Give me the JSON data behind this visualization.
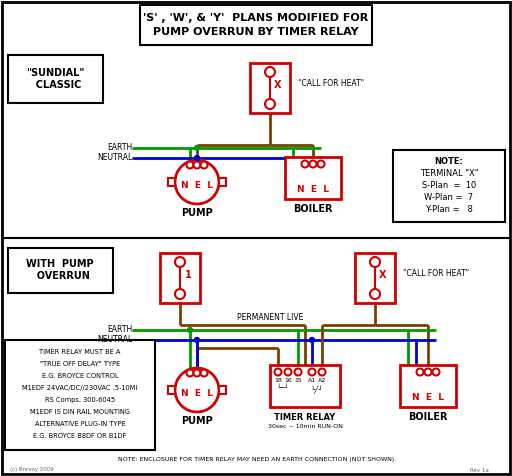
{
  "title_text": "'S' , 'W', & 'Y'  PLANS MODIFIED FOR\nPUMP OVERRUN BY TIMER RELAY",
  "bg_color": "#ffffff",
  "red": "#cc0000",
  "green": "#009900",
  "blue": "#0000cc",
  "brown": "#7B3F00",
  "black": "#000000",
  "gray": "#666666",
  "note_top": [
    "NOTE:",
    "TERMINAL \"X\"",
    "S-Plan  =  10",
    "W-Plan =  7",
    "Y-Plan =   8"
  ],
  "note_bottom": [
    "TIMER RELAY MUST BE A",
    "\"TRUE OFF DELAY\" TYPE",
    "E.G. BROYCE CONTROL",
    "M1EDF 24VAC/DC//230VAC .5-10MI",
    "RS Comps. 300-6045",
    "M1EDF IS DIN RAIL MOUNTING",
    "ALTERNATIVE PLUG-IN TYPE",
    "E.G. BROYCE B8DF OR B1DF"
  ],
  "bottom_note": "NOTE: ENCLOSURE FOR TIMER RELAY MAY NEED AN EARTH CONNECTION (NOT SHOWN)"
}
